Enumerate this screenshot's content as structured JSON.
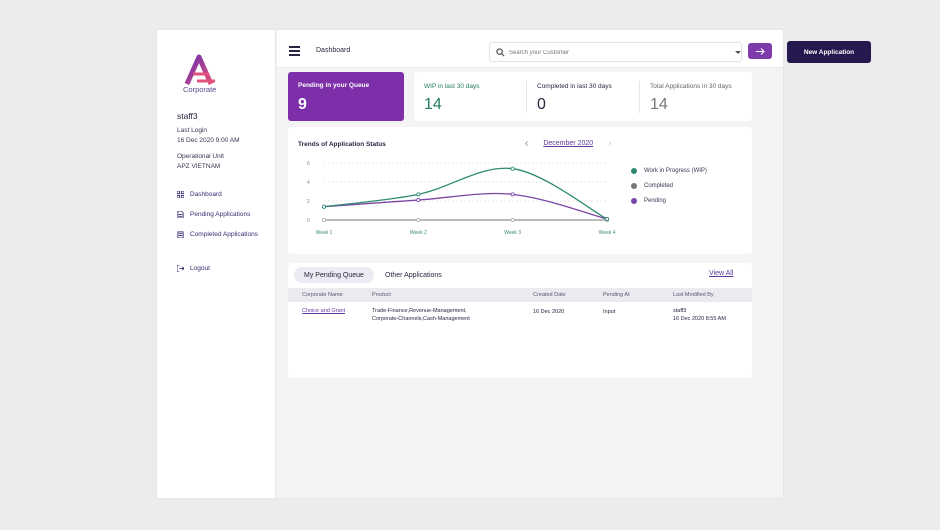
{
  "sidebar": {
    "logo_text": "Corporate",
    "user_name": "staff3",
    "last_login_label": "Last Login",
    "last_login_value": "16 Dec 2020 9:00 AM",
    "op_unit_label": "Operational Unit",
    "op_unit_value": "APZ VIETNAM",
    "nav": {
      "dashboard": "Dashboard",
      "pending": "Pending Applications",
      "completed": "Completed Applications",
      "logout": "Logout"
    }
  },
  "topbar": {
    "breadcrumb": "Dashboard",
    "search_placeholder": "Search your Customer",
    "new_app_label": "New Application"
  },
  "stats": {
    "pending_label": "Pending in your Queue",
    "pending_value": "9",
    "wip_label": "WIP in last 30 days",
    "wip_value": "14",
    "completed_label": "Completed in last 30 days",
    "completed_value": "0",
    "total_label": "Total Applications in 30 days",
    "total_value": "14"
  },
  "colors": {
    "wip": "#2e8b72",
    "completed": "#777777",
    "pending": "#7b45a6",
    "accent": "#7c2fa8",
    "dark": "#24184f"
  },
  "chart_data": {
    "type": "line",
    "title": "Trends of Application Status",
    "month": "December 2020",
    "categories": [
      "Week 1",
      "Week 2",
      "Week 3",
      "Week 4"
    ],
    "y_ticks": [
      "0",
      "2",
      "4",
      "6"
    ],
    "ylim": [
      0,
      6
    ],
    "series": [
      {
        "name": "Work in Progress (WIP)",
        "values": [
          1.4,
          2.7,
          5.4,
          0.1
        ]
      },
      {
        "name": "Completed",
        "values": [
          0,
          0,
          0,
          0
        ]
      },
      {
        "name": "Pending",
        "values": [
          1.4,
          2.1,
          2.7,
          0.1
        ]
      }
    ],
    "legend_position": "right"
  },
  "table": {
    "tabs": [
      "My Pending Queue",
      "Other Applications"
    ],
    "view_all": "View All",
    "columns": [
      "Corporate Name",
      "Product",
      "Created Date",
      "Pending At",
      "Last Modified By"
    ],
    "rows": [
      {
        "corporate": "Choice and Grant",
        "product_line1": "Trade-Finance,Revenue-Management,",
        "product_line2": "Corporate-Channels,Cash-Management",
        "created": "16 Dec 2020",
        "pending_at": "Input",
        "modified_by": "staff3",
        "modified_at": "16 Dec 2020 8:55 AM"
      }
    ]
  }
}
